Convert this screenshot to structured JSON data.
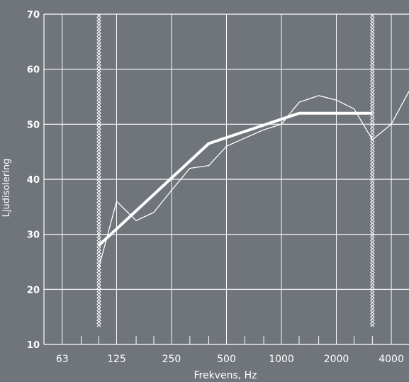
{
  "chart_data": {
    "type": "line",
    "xlabel": "Frekvens, Hz",
    "ylabel": "Ljudisolering",
    "x_scale": "log",
    "xlim": [
      50,
      5000
    ],
    "ylim": [
      10,
      70
    ],
    "y_ticks": [
      10,
      20,
      30,
      40,
      50,
      60,
      70
    ],
    "x_tick_labels": [
      {
        "value": 63,
        "label": "63"
      },
      {
        "value": 125,
        "label": "125"
      },
      {
        "value": 250,
        "label": "250"
      },
      {
        "value": 500,
        "label": "500"
      },
      {
        "value": 1000,
        "label": "1000"
      },
      {
        "value": 2000,
        "label": "2000"
      },
      {
        "value": 4000,
        "label": "4000"
      }
    ],
    "x_minor_ticks": [
      80,
      100,
      160,
      200,
      315,
      400,
      630,
      800,
      1250,
      1600,
      2500,
      3150
    ],
    "grid": true,
    "series": [
      {
        "style": "thin",
        "x": [
          100,
          125,
          160,
          200,
          250,
          315,
          400,
          500,
          630,
          800,
          1000,
          1250,
          1600,
          2000,
          2500,
          3150,
          4000,
          5000
        ],
        "y": [
          24,
          36,
          32.5,
          34,
          38,
          42,
          42.5,
          46,
          47.5,
          49,
          50,
          54,
          55.2,
          54.4,
          52.8,
          47.2,
          50,
          56
        ]
      },
      {
        "style": "thick",
        "x": [
          100,
          400,
          1250,
          3150
        ],
        "y": [
          28,
          46.5,
          52,
          52
        ]
      }
    ],
    "markers": [
      {
        "x": 100,
        "y_from": 13,
        "y_to": 70,
        "style": "hatched"
      },
      {
        "x": 3150,
        "y_from": 13,
        "y_to": 70,
        "style": "hatched"
      }
    ]
  },
  "colors": {
    "background": "#6f757a",
    "grid": "#ffffff",
    "line": "#ffffff"
  }
}
